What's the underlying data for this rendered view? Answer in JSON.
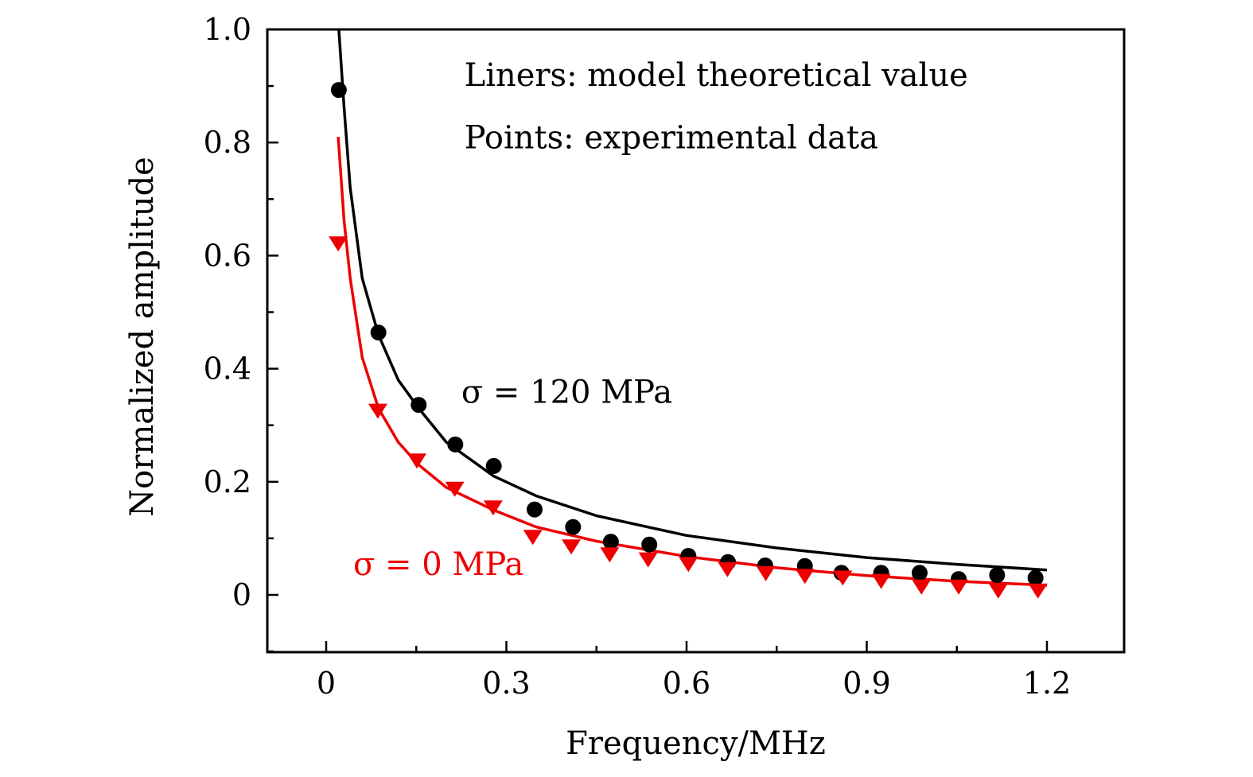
{
  "chart_data": {
    "type": "scatter",
    "title": "",
    "xlabel": "Frequency/MHz",
    "ylabel": "Normalized amplitude",
    "xlim": [
      -0.1,
      1.33
    ],
    "ylim": [
      -0.1,
      1.0
    ],
    "x_ticks": [
      0,
      0.3,
      0.6,
      0.9,
      1.2
    ],
    "x_tick_labels": [
      "0",
      "0.3",
      "0.6",
      "0.9",
      "1.2"
    ],
    "x_minor_ticks": [
      0.15,
      0.45,
      0.75,
      1.05
    ],
    "y_ticks": [
      0,
      0.2,
      0.4,
      0.6,
      0.8,
      1.0
    ],
    "y_tick_labels": [
      "0",
      "0.2",
      "0.4",
      "0.6",
      "0.8",
      "1.0"
    ],
    "y_minor_ticks": [
      -0.1,
      0.1,
      0.3,
      0.5,
      0.7,
      0.9
    ],
    "grid": false,
    "annotations": [
      {
        "text": "Liners: model theoretical value",
        "x": 0.23,
        "y": 0.9,
        "color": "#000000"
      },
      {
        "text": "Points: experimental data",
        "x": 0.23,
        "y": 0.79,
        "color": "#000000"
      },
      {
        "text": "σ = 120 MPa",
        "x": 0.225,
        "y": 0.34,
        "color": "#000000"
      },
      {
        "text": "σ = 0 MPa",
        "x": 0.045,
        "y": 0.035,
        "color": "#ee0000"
      }
    ],
    "series": [
      {
        "name": "σ = 120 MPa (experimental)",
        "kind": "points",
        "marker": "circle",
        "color": "#000000",
        "x": [
          0.021,
          0.087,
          0.154,
          0.215,
          0.279,
          0.347,
          0.411,
          0.474,
          0.538,
          0.603,
          0.669,
          0.731,
          0.797,
          0.858,
          0.924,
          0.988,
          1.053,
          1.117,
          1.181
        ],
        "y": [
          0.893,
          0.464,
          0.336,
          0.266,
          0.228,
          0.151,
          0.12,
          0.094,
          0.089,
          0.069,
          0.058,
          0.052,
          0.051,
          0.039,
          0.039,
          0.039,
          0.028,
          0.035,
          0.03
        ]
      },
      {
        "name": "σ = 0 MPa (experimental)",
        "kind": "points",
        "marker": "triangle-down",
        "color": "#ee0000",
        "x": [
          0.02,
          0.086,
          0.151,
          0.214,
          0.278,
          0.344,
          0.408,
          0.472,
          0.536,
          0.603,
          0.668,
          0.732,
          0.797,
          0.86,
          0.924,
          0.991,
          1.053,
          1.119,
          1.185
        ],
        "y": [
          0.622,
          0.326,
          0.238,
          0.188,
          0.155,
          0.103,
          0.086,
          0.072,
          0.063,
          0.055,
          0.046,
          0.039,
          0.034,
          0.031,
          0.025,
          0.015,
          0.015,
          0.008,
          0.008
        ]
      },
      {
        "name": "σ = 120 MPa (model)",
        "kind": "line",
        "color": "#000000",
        "x": [
          0.021,
          0.03,
          0.04,
          0.06,
          0.087,
          0.12,
          0.154,
          0.2,
          0.279,
          0.35,
          0.45,
          0.6,
          0.75,
          0.9,
          1.05,
          1.2
        ],
        "y": [
          1.0,
          0.86,
          0.72,
          0.56,
          0.46,
          0.38,
          0.33,
          0.27,
          0.21,
          0.175,
          0.14,
          0.105,
          0.083,
          0.066,
          0.054,
          0.044
        ]
      },
      {
        "name": "σ = 0 MPa (model)",
        "kind": "line",
        "color": "#ee0000",
        "x": [
          0.02,
          0.03,
          0.04,
          0.06,
          0.087,
          0.12,
          0.154,
          0.2,
          0.279,
          0.35,
          0.45,
          0.6,
          0.75,
          0.9,
          1.05,
          1.2
        ],
        "y": [
          0.81,
          0.66,
          0.56,
          0.42,
          0.33,
          0.27,
          0.23,
          0.19,
          0.15,
          0.12,
          0.095,
          0.068,
          0.048,
          0.034,
          0.024,
          0.017
        ]
      }
    ]
  }
}
